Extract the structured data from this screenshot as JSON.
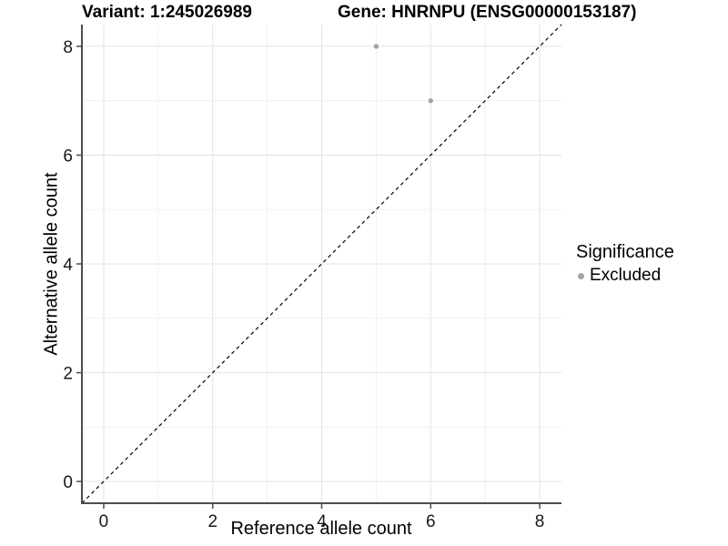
{
  "titles": {
    "variant": "Variant: 1:245026989",
    "gene": "Gene: HNRNPU (ENSG00000153187)"
  },
  "axes": {
    "x_label": "Reference allele count",
    "y_label": "Alternative allele count"
  },
  "legend": {
    "title": "Significance",
    "items": [
      {
        "label": "Excluded",
        "color": "#a3a3a3"
      }
    ]
  },
  "chart_data": {
    "type": "scatter",
    "title_left": "Variant: 1:245026989",
    "title_right": "Gene: HNRNPU (ENSG00000153187)",
    "xlabel": "Reference allele count",
    "ylabel": "Alternative allele count",
    "xlim": [
      -0.4,
      8.4
    ],
    "ylim": [
      -0.4,
      8.4
    ],
    "xticks": [
      0,
      2,
      4,
      6,
      8
    ],
    "yticks": [
      0,
      2,
      4,
      6,
      8
    ],
    "x_minor_gridlines": [
      1,
      3,
      5,
      7
    ],
    "y_minor_gridlines": [
      1,
      3,
      5,
      7
    ],
    "grid": true,
    "legend_position": "right",
    "series": [
      {
        "name": "Excluded",
        "color": "#a3a3a3",
        "points": [
          [
            5,
            8
          ],
          [
            6,
            7
          ]
        ]
      }
    ],
    "reference_line": {
      "type": "identity",
      "slope": 1,
      "intercept": 0,
      "style": "dashed",
      "color": "#000000"
    },
    "colors": {
      "axis": "#4d4d4d",
      "tick_text": "#1a1a1a",
      "grid_major": "#e4e4e4",
      "grid_minor": "#f0f0f0",
      "point": "#a3a3a3",
      "background": "#ffffff"
    }
  }
}
